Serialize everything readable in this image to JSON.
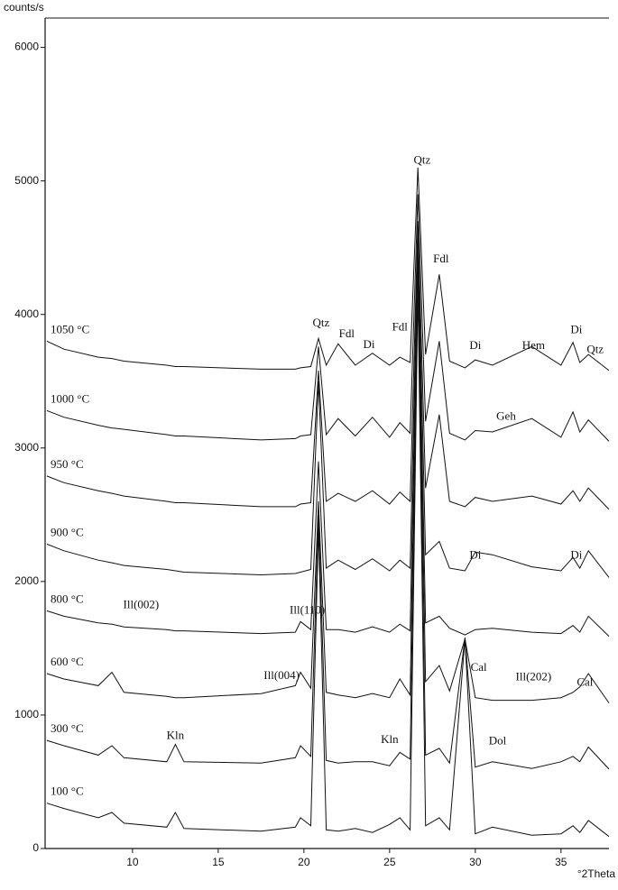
{
  "chart_data": {
    "type": "line",
    "y_label": "counts/s",
    "x_label": "°2Theta",
    "xlim": [
      4.9,
      37.8
    ],
    "ylim": [
      0,
      6220
    ],
    "xticks": [
      10,
      15,
      20,
      25,
      30,
      35
    ],
    "yticks": [
      0,
      1000,
      2000,
      3000,
      4000,
      5000,
      6000
    ],
    "grid": false,
    "x": [
      5,
      6,
      8,
      8.8,
      9.5,
      12,
      12.5,
      13,
      17.5,
      19.5,
      19.8,
      20.4,
      20.85,
      21.3,
      22,
      23,
      24,
      25,
      25.6,
      26.2,
      26.65,
      27.1,
      27.9,
      28.5,
      29.4,
      30,
      31,
      33.3,
      35,
      35.7,
      36.1,
      36.6,
      37.8
    ],
    "series": [
      {
        "name": "1050 °C",
        "color": "#111111",
        "values": [
          3800,
          3740,
          3680,
          3670,
          3650,
          3620,
          3610,
          3610,
          3590,
          3590,
          3600,
          3610,
          3820,
          3620,
          3780,
          3620,
          3710,
          3620,
          3680,
          3640,
          5100,
          3700,
          4300,
          3650,
          3600,
          3660,
          3620,
          3760,
          3620,
          3790,
          3640,
          3700,
          3580
        ]
      },
      {
        "name": "1000 °C",
        "color": "#111111",
        "values": [
          3280,
          3230,
          3170,
          3150,
          3140,
          3100,
          3090,
          3090,
          3060,
          3070,
          3090,
          3100,
          3760,
          3100,
          3220,
          3090,
          3230,
          3080,
          3190,
          3110,
          4900,
          3200,
          3800,
          3110,
          3060,
          3130,
          3120,
          3220,
          3080,
          3270,
          3120,
          3210,
          3050
        ]
      },
      {
        "name": "950 °C",
        "color": "#111111",
        "values": [
          2790,
          2740,
          2680,
          2660,
          2640,
          2600,
          2590,
          2590,
          2560,
          2560,
          2580,
          2590,
          3580,
          2600,
          2660,
          2600,
          2680,
          2580,
          2670,
          2600,
          4700,
          2700,
          3250,
          2600,
          2560,
          2630,
          2600,
          2640,
          2580,
          2680,
          2600,
          2700,
          2540
        ]
      },
      {
        "name": "900 °C",
        "color": "#111111",
        "values": [
          2280,
          2230,
          2160,
          2140,
          2120,
          2090,
          2080,
          2070,
          2050,
          2060,
          2070,
          2090,
          3500,
          2100,
          2160,
          2090,
          2170,
          2080,
          2160,
          2100,
          4600,
          2200,
          2300,
          2100,
          2080,
          2220,
          2200,
          2110,
          2080,
          2180,
          2100,
          2230,
          2030
        ]
      },
      {
        "name": "800 °C",
        "color": "#111111",
        "values": [
          1780,
          1740,
          1690,
          1680,
          1660,
          1640,
          1630,
          1630,
          1610,
          1620,
          1700,
          1640,
          2900,
          1640,
          1640,
          1620,
          1660,
          1620,
          1680,
          1630,
          4500,
          1690,
          1740,
          1650,
          1600,
          1640,
          1650,
          1620,
          1610,
          1670,
          1620,
          1740,
          1590
        ]
      },
      {
        "name": "600 °C",
        "color": "#111111",
        "values": [
          1310,
          1270,
          1220,
          1320,
          1170,
          1140,
          1130,
          1130,
          1160,
          1220,
          1320,
          1200,
          2600,
          1170,
          1150,
          1130,
          1160,
          1130,
          1270,
          1150,
          4450,
          1250,
          1370,
          1180,
          1570,
          1130,
          1110,
          1110,
          1130,
          1170,
          1210,
          1310,
          1090
        ]
      },
      {
        "name": "300 °C",
        "color": "#111111",
        "values": [
          810,
          770,
          700,
          770,
          680,
          650,
          780,
          650,
          640,
          680,
          770,
          690,
          2500,
          660,
          640,
          650,
          650,
          620,
          720,
          670,
          4400,
          700,
          750,
          640,
          1580,
          610,
          650,
          600,
          650,
          690,
          650,
          760,
          595
        ]
      },
      {
        "name": "100 °C",
        "color": "#111111",
        "values": [
          340,
          300,
          230,
          270,
          190,
          160,
          270,
          150,
          130,
          160,
          230,
          170,
          2400,
          140,
          130,
          150,
          120,
          180,
          230,
          140,
          4200,
          170,
          230,
          140,
          1570,
          110,
          160,
          100,
          110,
          170,
          120,
          210,
          90
        ]
      }
    ],
    "annotations": [
      {
        "text": "Qtz",
        "x": 26.9,
        "y": 5150
      },
      {
        "text": "Qtz",
        "x": 21,
        "y": 3930
      },
      {
        "text": "Fdl",
        "x": 22.5,
        "y": 3850
      },
      {
        "text": "Di",
        "x": 23.8,
        "y": 3770
      },
      {
        "text": "Fdl",
        "x": 25.6,
        "y": 3900
      },
      {
        "text": "Fdl",
        "x": 28,
        "y": 4410
      },
      {
        "text": "Di",
        "x": 30,
        "y": 3760
      },
      {
        "text": "Hem",
        "x": 33.4,
        "y": 3760
      },
      {
        "text": "Di",
        "x": 35.9,
        "y": 3880
      },
      {
        "text": "Qtz",
        "x": 37,
        "y": 3730
      },
      {
        "text": "Geh",
        "x": 31.8,
        "y": 3230
      },
      {
        "text": "Di",
        "x": 30,
        "y": 2190
      },
      {
        "text": "Di",
        "x": 35.9,
        "y": 2190
      },
      {
        "text": "Ill(002)",
        "x": 10.5,
        "y": 1820
      },
      {
        "text": "Ill(110)",
        "x": 20.2,
        "y": 1780
      },
      {
        "text": "Ill(004)",
        "x": 18.7,
        "y": 1290
      },
      {
        "text": "Cal",
        "x": 30.2,
        "y": 1350
      },
      {
        "text": "Ill(202)",
        "x": 33.4,
        "y": 1280
      },
      {
        "text": "Cal",
        "x": 36.4,
        "y": 1240
      },
      {
        "text": "Kln",
        "x": 12.5,
        "y": 840
      },
      {
        "text": "Kln",
        "x": 25,
        "y": 810
      },
      {
        "text": "Dol",
        "x": 31.3,
        "y": 800
      }
    ]
  }
}
